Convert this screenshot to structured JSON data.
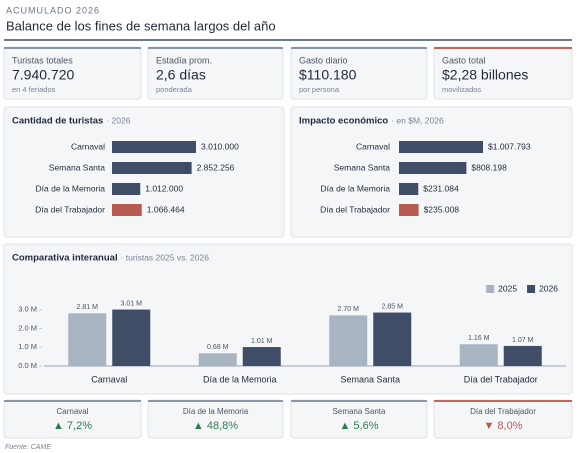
{
  "header": {
    "kicker": "ACUMULADO 2026",
    "title": "Balance de los fines de semana largos del año"
  },
  "kpis": [
    {
      "label": "Turistas totales",
      "value": "7.940.720",
      "note": "en 4 feriados",
      "color": "#8a95a5"
    },
    {
      "label": "Estadía prom.",
      "value": "2,6 días",
      "note": "ponderada",
      "color": "#8a95a5"
    },
    {
      "label": "Gasto diario",
      "value": "$110.180",
      "note": "por persona",
      "color": "#8a95a5"
    },
    {
      "label": "Gasto total",
      "value": "$2,28 billones",
      "note": "movilizados",
      "color": "#c0675a"
    }
  ],
  "chart_data": [
    {
      "type": "hbar",
      "title": "Cantidad de turistas",
      "subtitle": "· 2026",
      "categories": [
        "Carnaval",
        "Semana Santa",
        "Día de la Memoria",
        "Día del Trabajador"
      ],
      "values": [
        3010000,
        2852256,
        1012000,
        1066464
      ],
      "value_labels": [
        "3.010.000",
        "2.852.256",
        "1.012.000",
        "1.066.464"
      ],
      "colors": [
        "#3f4d66",
        "#3f4d66",
        "#3f4d66",
        "#b85c50"
      ]
    },
    {
      "type": "hbar",
      "title": "Impacto económico",
      "subtitle": "· en $M, 2026",
      "categories": [
        "Carnaval",
        "Semana Santa",
        "Día de la Memoria",
        "Día del Trabajador"
      ],
      "values": [
        1007793,
        808198,
        231084,
        235008
      ],
      "value_labels": [
        "$1.007.793",
        "$808.198",
        "$231.084",
        "$235.008"
      ],
      "colors": [
        "#3f4d66",
        "#3f4d66",
        "#3f4d66",
        "#b85c50"
      ]
    },
    {
      "type": "grouped_bar",
      "title": "Comparativa interanual",
      "subtitle": "· turistas 2025 vs. 2026",
      "categories": [
        "Carnaval",
        "Día de la Memoria",
        "Semana Santa",
        "Día del Trabajador"
      ],
      "series": [
        {
          "name": "2025",
          "color": "#a9b4c2",
          "values": [
            2810000,
            680000,
            2700000,
            1160000
          ],
          "value_labels": [
            "2.81 M",
            "0.68 M",
            "2.70 M",
            "1.16 M"
          ]
        },
        {
          "name": "2026",
          "color": "#3f4d66",
          "values": [
            3010000,
            1010000,
            2850000,
            1070000
          ],
          "value_labels": [
            "3.01 M",
            "1.01 M",
            "2.85 M",
            "1.07 M"
          ]
        }
      ],
      "ylim": [
        0,
        4000000
      ],
      "yticks": [
        {
          "value": 0,
          "label": "0.0 M"
        },
        {
          "value": 1000000,
          "label": "1.0 M"
        },
        {
          "value": 2000000,
          "label": "2.0 M"
        },
        {
          "value": 3000000,
          "label": "3.0 M"
        }
      ],
      "legend": "top-right"
    }
  ],
  "deltas": [
    {
      "label": "Carnaval",
      "value": "▲ 7,2%",
      "color": "#2e7d4f",
      "accent": "#8a95a5"
    },
    {
      "label": "Día de la Memoria",
      "value": "▲ 48,8%",
      "color": "#2e7d4f",
      "accent": "#8a95a5"
    },
    {
      "label": "Semana Santa",
      "value": "▲ 5,6%",
      "color": "#2e7d4f",
      "accent": "#8a95a5"
    },
    {
      "label": "Día del Trabajador",
      "value": "▼ 8,0%",
      "color": "#b85c50",
      "accent": "#c0675a"
    }
  ],
  "footer": {
    "source": "Fuente: CAME"
  }
}
